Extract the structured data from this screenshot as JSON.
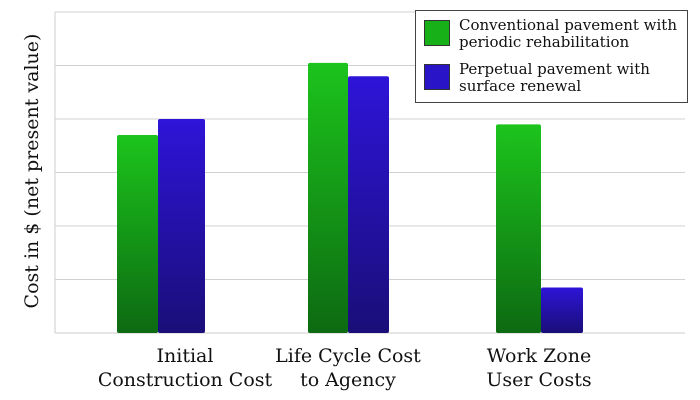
{
  "chart_data": {
    "type": "bar",
    "title": "",
    "xlabel": "",
    "ylabel": "Cost in $ (net present value)",
    "ylim": [
      0,
      6
    ],
    "grid": true,
    "legend_position": "top-right",
    "categories": [
      [
        "Initial",
        "Construction Cost"
      ],
      [
        "Life Cycle Cost",
        "to Agency"
      ],
      [
        "Work Zone",
        "User Costs"
      ]
    ],
    "series": [
      {
        "name": "Conventional pavement with periodic rehabilitation",
        "legend_lines": [
          "Conventional pavement with",
          "periodic rehabilitation"
        ],
        "color": "#18b018",
        "values": [
          3.7,
          5.05,
          3.9
        ]
      },
      {
        "name": "Perpetual pavement with surface renewal",
        "legend_lines": [
          "Perpetual pavement with",
          "surface renewal"
        ],
        "color": "#2a14c8",
        "values": [
          4.0,
          4.8,
          0.85
        ]
      }
    ]
  }
}
